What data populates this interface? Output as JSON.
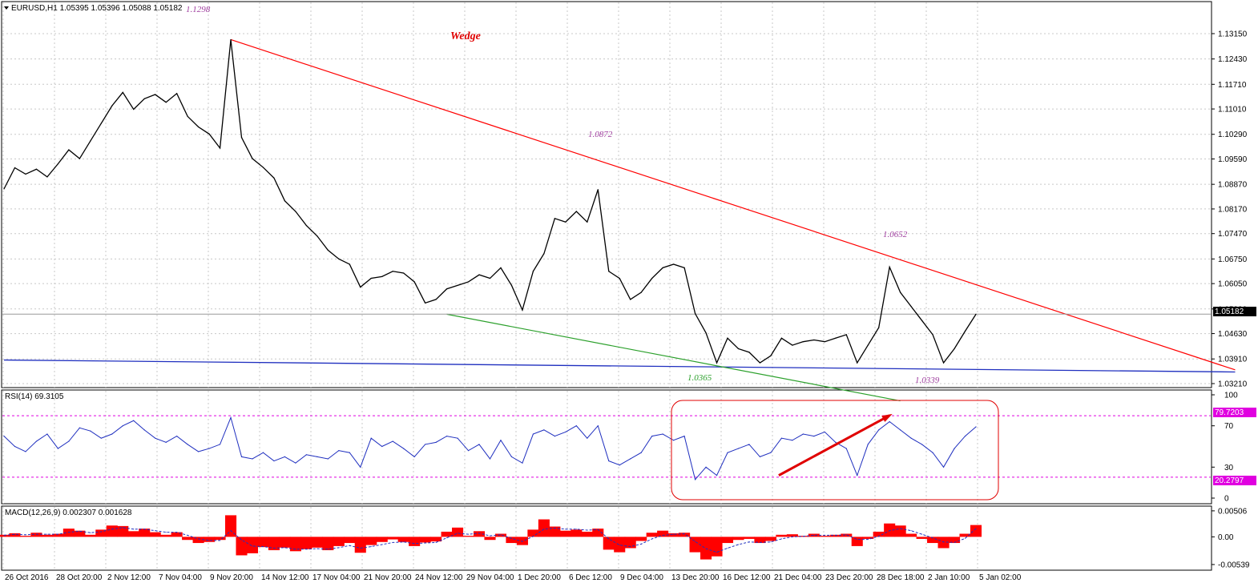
{
  "colors": {
    "background": "#ffffff",
    "price_line": "#000000",
    "grid": "#c8c8c8",
    "wedge_upper": "#ff0000",
    "wedge_lower": "#2ca02c",
    "support_line": "#1f2fbf",
    "rsi_line": "#1f2fbf",
    "level_line": "#e000e0",
    "macd_hist": "#ff0000",
    "macd_signal": "#1f2fbf",
    "annotation_purple": "#a040a0",
    "annotation_green": "#2ca02c",
    "annotation_red": "#e00000",
    "current_price_bg": "#000000",
    "level_label_bg": "#e000e0"
  },
  "chart_data": [
    {
      "type": "line",
      "panel": "price",
      "header": "EURUSD,H1  1.05395 1.05396 1.05088 1.05182",
      "ylim": [
        1.0321,
        1.1365
      ],
      "y_ticks": [
        "1.13150",
        "1.12430",
        "1.11710",
        "1.11010",
        "1.10290",
        "1.09590",
        "1.08870",
        "1.08170",
        "1.07470",
        "1.06750",
        "1.06050",
        "1.05330",
        "1.04630",
        "1.03910",
        "1.03210"
      ],
      "current_price": "1.05182",
      "x_labels": [
        "26 Oct 2016",
        "28 Oct 20:00",
        "2 Nov 12:00",
        "7 Nov 04:00",
        "9 Nov 20:00",
        "14 Nov 12:00",
        "17 Nov 04:00",
        "21 Nov 20:00",
        "24 Nov 12:00",
        "29 Nov 04:00",
        "1 Dec 20:00",
        "6 Dec 12:00",
        "9 Dec 04:00",
        "13 Dec 20:00",
        "16 Dec 12:00",
        "21 Dec 04:00",
        "23 Dec 20:00",
        "28 Dec 18:00",
        "2 Jan 10:00",
        "5 Jan 02:00"
      ],
      "series": [
        {
          "values": [
            1.0874,
            1.0934,
            1.0916,
            1.093,
            1.0908,
            1.0945,
            1.0985,
            1.096,
            1.101,
            1.106,
            1.111,
            1.1148,
            1.11,
            1.113,
            1.1142,
            1.112,
            1.1145,
            1.108,
            1.105,
            1.103,
            1.099,
            1.1298,
            1.102,
            1.096,
            1.0935,
            1.0905,
            1.084,
            1.081,
            1.077,
            1.074,
            1.07,
            1.0675,
            1.066,
            1.0595,
            1.062,
            1.0625,
            1.064,
            1.0635,
            1.061,
            1.055,
            1.056,
            1.059,
            1.06,
            1.061,
            1.063,
            1.062,
            1.065,
            1.06,
            1.053,
            1.064,
            1.069,
            1.079,
            1.078,
            1.081,
            1.078,
            1.0872,
            1.064,
            1.062,
            1.056,
            1.058,
            1.062,
            1.065,
            1.066,
            1.065,
            1.052,
            1.0465,
            1.038,
            1.045,
            1.042,
            1.041,
            1.038,
            1.04,
            1.045,
            1.043,
            1.044,
            1.0445,
            1.044,
            1.045,
            1.046,
            1.038,
            1.043,
            1.048,
            1.0652,
            1.058,
            1.054,
            1.05,
            1.046,
            1.038,
            1.042,
            1.047,
            1.0518
          ]
        }
      ],
      "annotations": [
        {
          "text": "1.1298",
          "color": "annotation_purple"
        },
        {
          "text": "Wedge",
          "color": "annotation_red"
        },
        {
          "text": "1.0872",
          "color": "annotation_purple"
        },
        {
          "text": "1.0652",
          "color": "annotation_purple"
        },
        {
          "text": "1.0365",
          "color": "annotation_green"
        },
        {
          "text": "1.0339",
          "color": "annotation_purple"
        }
      ],
      "trendlines": {
        "wedge_upper": [
          [
            21,
            1.1298
          ],
          [
            114,
            1.036
          ]
        ],
        "wedge_lower": [
          [
            41,
            1.0518
          ],
          [
            83,
            1.0272
          ]
        ],
        "support": [
          [
            0,
            1.0388
          ],
          [
            114,
            1.0354
          ]
        ]
      }
    },
    {
      "type": "line",
      "panel": "rsi",
      "header": "RSI(14) 69.3105",
      "ylim": [
        0,
        100
      ],
      "y_ticks": [
        "100",
        "70",
        "30",
        "0"
      ],
      "levels": [
        "79.7203",
        "20.2797"
      ],
      "series": [
        {
          "values": [
            60,
            50,
            45,
            55,
            62,
            48,
            55,
            68,
            65,
            58,
            62,
            70,
            75,
            66,
            58,
            54,
            60,
            52,
            45,
            48,
            52,
            78,
            40,
            38,
            44,
            36,
            40,
            34,
            42,
            40,
            38,
            46,
            44,
            30,
            58,
            50,
            55,
            48,
            40,
            52,
            54,
            60,
            58,
            46,
            52,
            38,
            56,
            40,
            34,
            62,
            66,
            60,
            64,
            70,
            58,
            70,
            36,
            32,
            38,
            44,
            60,
            62,
            56,
            60,
            18,
            30,
            22,
            44,
            48,
            52,
            40,
            44,
            58,
            56,
            62,
            60,
            64,
            54,
            48,
            22,
            52,
            66,
            74,
            66,
            58,
            52,
            44,
            30,
            48,
            60,
            69
          ]
        }
      ],
      "annotations": [
        {
          "shape": "rounded-rect",
          "color": "annotation_red"
        },
        {
          "shape": "arrow",
          "from": [
            71,
            22
          ],
          "to": [
            82,
            80
          ],
          "color": "annotation_red"
        }
      ]
    },
    {
      "type": "bar",
      "panel": "macd",
      "header": "MACD(12,26,9) 0.002307 0.001628",
      "ylim": [
        -0.0054,
        0.0052
      ],
      "y_ticks": [
        "0.00506",
        "0.00",
        "-0.00539"
      ],
      "series": [
        {
          "name": "macd",
          "values": [
            0.0004,
            0.0007,
            0.0002,
            0.0008,
            0.0004,
            0.0006,
            0.0016,
            0.0012,
            0.0004,
            0.0014,
            0.0022,
            0.0021,
            0.0011,
            0.0016,
            0.0009,
            0.0004,
            0.0009,
            -0.0006,
            -0.0012,
            -0.001,
            -0.0006,
            0.0042,
            -0.0036,
            -0.0032,
            -0.002,
            -0.0026,
            -0.0021,
            -0.0028,
            -0.0024,
            -0.0021,
            -0.0026,
            -0.0018,
            -0.0012,
            -0.0031,
            -0.0016,
            -0.001,
            -0.0005,
            -0.001,
            -0.0018,
            -0.0011,
            -0.0009,
            0.001,
            0.0018,
            0.0002,
            0.0011,
            -0.0006,
            0.0006,
            -0.0012,
            -0.0016,
            0.0014,
            0.0034,
            0.002,
            0.0012,
            0.0014,
            0.001,
            0.0016,
            -0.0025,
            -0.003,
            -0.0022,
            -0.0008,
            0.0008,
            0.0012,
            0.0007,
            0.0008,
            -0.003,
            -0.0044,
            -0.0038,
            -0.0012,
            -0.0006,
            -0.0004,
            -0.0012,
            -0.0008,
            0.0004,
            0.0005,
            0.0002,
            0.0006,
            0.0002,
            0.0004,
            0.0006,
            -0.0018,
            -0.0004,
            0.001,
            0.0026,
            0.0022,
            0.0006,
            -0.0004,
            -0.0012,
            -0.0022,
            -0.0012,
            0.0006,
            0.0023
          ]
        },
        {
          "name": "signal",
          "values": [
            0.0003,
            0.0005,
            0.0004,
            0.0005,
            0.0005,
            0.0005,
            0.0009,
            0.0011,
            0.0008,
            0.001,
            0.0015,
            0.0018,
            0.0015,
            0.0015,
            0.0012,
            0.0009,
            0.0009,
            0.0003,
            -0.0004,
            -0.0007,
            -0.0007,
            0.0012,
            -0.0006,
            -0.0018,
            -0.0019,
            -0.0022,
            -0.0021,
            -0.0024,
            -0.0024,
            -0.0023,
            -0.0024,
            -0.0021,
            -0.0017,
            -0.0022,
            -0.0019,
            -0.0015,
            -0.0011,
            -0.001,
            -0.0013,
            -0.0012,
            -0.0011,
            -0.0002,
            0.0007,
            0.0005,
            0.0007,
            0.0002,
            0.0004,
            -0.0003,
            -0.0009,
            0.0001,
            0.0015,
            0.0017,
            0.0015,
            0.0015,
            0.0013,
            0.0014,
            -0.0004,
            -0.0016,
            -0.0019,
            -0.0014,
            -0.0004,
            0.0003,
            0.0005,
            0.0006,
            -0.0009,
            -0.0023,
            -0.003,
            -0.0022,
            -0.0015,
            -0.001,
            -0.0011,
            -0.001,
            -0.0004,
            0.0,
            0.0001,
            0.0003,
            0.0003,
            0.0003,
            0.0004,
            -0.0005,
            -0.0005,
            0.0001,
            0.0012,
            0.0016,
            0.0012,
            0.0005,
            -0.0002,
            -0.001,
            -0.0011,
            -0.0003,
            0.0016
          ]
        }
      ]
    }
  ]
}
